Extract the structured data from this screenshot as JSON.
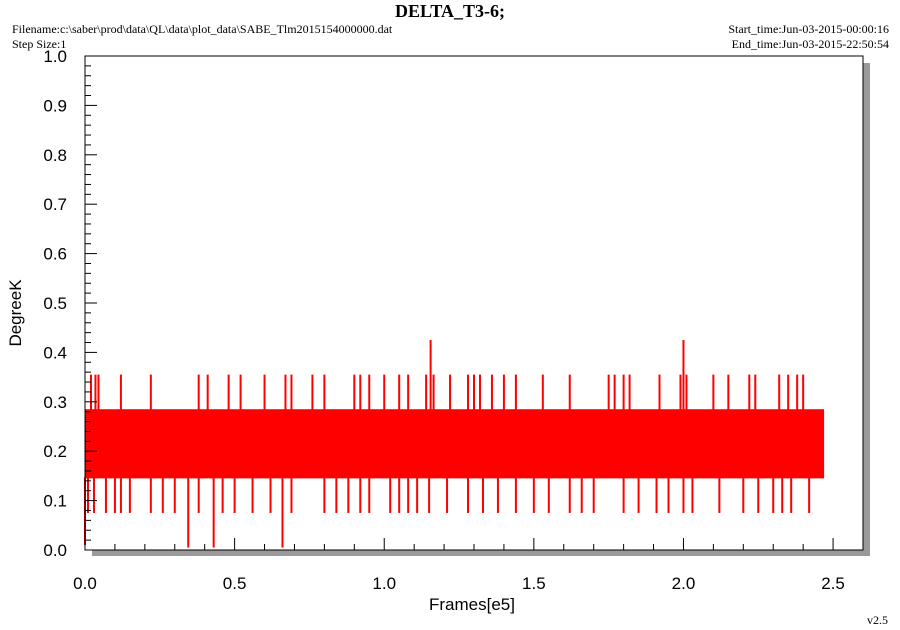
{
  "header": {
    "title": "DELTA_T3-6;",
    "filename": "Filename:c:\\saber\\prod\\data\\QL\\data\\plot_data\\SABE_Tlm2015154000000.dat",
    "step_size": "Step Size:1",
    "start_time": "Start_time:Jun-03-2015-00:00:16",
    "end_time": "End_time:Jun-03-2015-22:50:54"
  },
  "footer": {
    "version": "v2.5"
  },
  "colors": {
    "series": "#ff0000",
    "axis": "#000000",
    "shadow": "#9a9a9a"
  },
  "chart_data": {
    "type": "line",
    "title": "DELTA_T3-6;",
    "xlabel": "Frames[e5]",
    "ylabel": "DegreeK",
    "xlim": [
      0.0,
      2.6
    ],
    "ylim": [
      0.0,
      1.0
    ],
    "xticks": [
      "0.0",
      "0.5",
      "1.0",
      "1.5",
      "2.0",
      "2.5"
    ],
    "xtick_values": [
      0.0,
      0.5,
      1.0,
      1.5,
      2.0,
      2.5
    ],
    "yticks": [
      "0.0",
      "0.1",
      "0.2",
      "0.3",
      "0.4",
      "0.5",
      "0.6",
      "0.7",
      "0.8",
      "0.9",
      "1.0"
    ],
    "ytick_values": [
      0.0,
      0.1,
      0.2,
      0.3,
      0.4,
      0.5,
      0.6,
      0.7,
      0.8,
      0.9,
      1.0
    ],
    "grid": false,
    "series": [
      {
        "color": "#ff0000",
        "x_range": [
          0.0,
          2.47
        ],
        "band": {
          "low": 0.145,
          "high": 0.285
        },
        "spikes_up": [
          [
            0.02,
            0.355
          ],
          [
            0.035,
            0.355
          ],
          [
            0.045,
            0.355
          ],
          [
            0.12,
            0.355
          ],
          [
            0.22,
            0.355
          ],
          [
            0.38,
            0.355
          ],
          [
            0.41,
            0.355
          ],
          [
            0.48,
            0.355
          ],
          [
            0.52,
            0.355
          ],
          [
            0.6,
            0.355
          ],
          [
            0.67,
            0.355
          ],
          [
            0.69,
            0.355
          ],
          [
            0.76,
            0.355
          ],
          [
            0.8,
            0.355
          ],
          [
            0.9,
            0.355
          ],
          [
            0.92,
            0.355
          ],
          [
            0.95,
            0.355
          ],
          [
            1.0,
            0.355
          ],
          [
            1.05,
            0.355
          ],
          [
            1.08,
            0.355
          ],
          [
            1.14,
            0.355
          ],
          [
            1.155,
            0.425
          ],
          [
            1.165,
            0.355
          ],
          [
            1.22,
            0.355
          ],
          [
            1.28,
            0.355
          ],
          [
            1.3,
            0.355
          ],
          [
            1.32,
            0.355
          ],
          [
            1.36,
            0.355
          ],
          [
            1.4,
            0.355
          ],
          [
            1.44,
            0.355
          ],
          [
            1.53,
            0.355
          ],
          [
            1.62,
            0.355
          ],
          [
            1.75,
            0.355
          ],
          [
            1.77,
            0.355
          ],
          [
            1.8,
            0.355
          ],
          [
            1.82,
            0.355
          ],
          [
            1.92,
            0.355
          ],
          [
            1.99,
            0.355
          ],
          [
            2.0,
            0.425
          ],
          [
            2.01,
            0.355
          ],
          [
            2.1,
            0.355
          ],
          [
            2.15,
            0.355
          ],
          [
            2.22,
            0.355
          ],
          [
            2.24,
            0.355
          ],
          [
            2.32,
            0.355
          ],
          [
            2.35,
            0.355
          ],
          [
            2.38,
            0.355
          ],
          [
            2.4,
            0.355
          ]
        ],
        "spikes_down": [
          [
            0.0,
            0.01
          ],
          [
            0.01,
            0.075
          ],
          [
            0.03,
            0.075
          ],
          [
            0.07,
            0.075
          ],
          [
            0.1,
            0.075
          ],
          [
            0.12,
            0.075
          ],
          [
            0.15,
            0.075
          ],
          [
            0.22,
            0.075
          ],
          [
            0.26,
            0.075
          ],
          [
            0.3,
            0.075
          ],
          [
            0.345,
            0.005
          ],
          [
            0.38,
            0.075
          ],
          [
            0.43,
            0.005
          ],
          [
            0.46,
            0.075
          ],
          [
            0.5,
            0.075
          ],
          [
            0.56,
            0.075
          ],
          [
            0.62,
            0.075
          ],
          [
            0.66,
            0.005
          ],
          [
            0.69,
            0.075
          ],
          [
            0.8,
            0.075
          ],
          [
            0.84,
            0.075
          ],
          [
            0.88,
            0.075
          ],
          [
            0.92,
            0.075
          ],
          [
            0.95,
            0.075
          ],
          [
            1.02,
            0.075
          ],
          [
            1.05,
            0.075
          ],
          [
            1.08,
            0.075
          ],
          [
            1.11,
            0.075
          ],
          [
            1.15,
            0.075
          ],
          [
            1.21,
            0.075
          ],
          [
            1.28,
            0.075
          ],
          [
            1.33,
            0.075
          ],
          [
            1.38,
            0.075
          ],
          [
            1.44,
            0.075
          ],
          [
            1.5,
            0.075
          ],
          [
            1.55,
            0.075
          ],
          [
            1.62,
            0.075
          ],
          [
            1.66,
            0.075
          ],
          [
            1.7,
            0.075
          ],
          [
            1.8,
            0.075
          ],
          [
            1.85,
            0.075
          ],
          [
            1.91,
            0.075
          ],
          [
            1.95,
            0.075
          ],
          [
            2.0,
            0.075
          ],
          [
            2.03,
            0.075
          ],
          [
            2.12,
            0.075
          ],
          [
            2.2,
            0.075
          ],
          [
            2.25,
            0.075
          ],
          [
            2.3,
            0.075
          ],
          [
            2.33,
            0.075
          ],
          [
            2.36,
            0.075
          ],
          [
            2.42,
            0.075
          ]
        ]
      }
    ]
  }
}
